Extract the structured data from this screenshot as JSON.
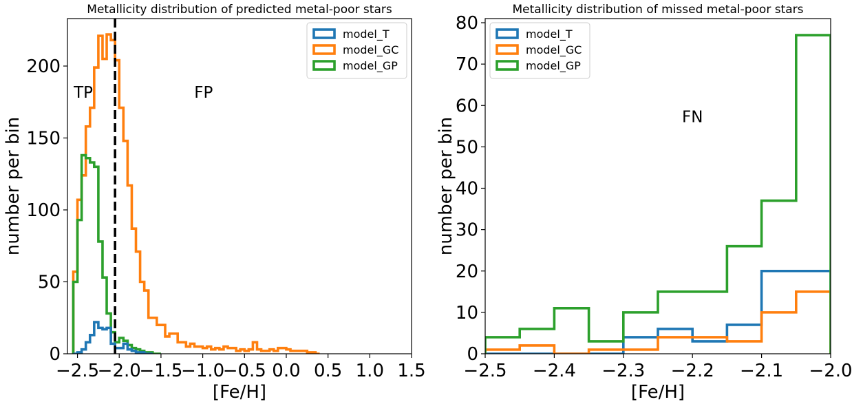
{
  "chart_data": [
    {
      "type": "histogram",
      "title": "Metallicity distribution of predicted metal-poor stars",
      "xlabel": "[Fe/H]",
      "ylabel": "number per bin",
      "xlim": [
        -2.62,
        1.5
      ],
      "ylim": [
        0,
        233
      ],
      "xticks": [
        -2.5,
        -2.0,
        -1.5,
        -1.0,
        -0.5,
        0.0,
        0.5,
        1.0,
        1.5
      ],
      "xtick_labels": [
        "−2.5",
        "−2.0",
        "−1.5",
        "−1.0",
        "−0.5",
        "0.0",
        "0.5",
        "1.0",
        "1.5"
      ],
      "yticks": [
        0,
        50,
        100,
        150,
        200
      ],
      "ytick_labels": [
        "0",
        "50",
        "100",
        "150",
        "200"
      ],
      "legend_position": "top-right",
      "vline": {
        "x": -2.05,
        "style": "dashed",
        "color": "#000000"
      },
      "annotations": [
        {
          "text": "TP",
          "x": -2.43,
          "y": 178
        },
        {
          "text": "FP",
          "x": -0.99,
          "y": 178
        }
      ],
      "series": [
        {
          "name": "model_GC",
          "color": "#ff7f0e",
          "bin_edges": [
            -2.55,
            -2.5,
            -2.45,
            -2.4,
            -2.35,
            -2.3,
            -2.25,
            -2.2,
            -2.15,
            -2.1,
            -2.05,
            -2.0,
            -1.95,
            -1.9,
            -1.85,
            -1.8,
            -1.75,
            -1.7,
            -1.65,
            -1.6,
            -1.55,
            -1.5,
            -1.45,
            -1.4,
            -1.35,
            -1.3,
            -1.25,
            -1.2,
            -1.15,
            -1.1,
            -1.05,
            -1.0,
            -0.95,
            -0.9,
            -0.85,
            -0.8,
            -0.75,
            -0.7,
            -0.65,
            -0.6,
            -0.55,
            -0.5,
            -0.45,
            -0.4,
            -0.35,
            -0.3,
            -0.25,
            -0.2,
            -0.15,
            -0.1,
            -0.05,
            0.0,
            0.05,
            0.1,
            0.15,
            0.2,
            0.25,
            0.3,
            0.35,
            0.4
          ],
          "values": [
            57,
            107,
            124,
            158,
            171,
            199,
            221,
            205,
            222,
            218,
            204,
            171,
            148,
            117,
            87,
            71,
            50,
            44,
            25,
            25,
            20,
            20,
            12,
            14,
            14,
            8,
            8,
            5,
            7,
            5,
            5,
            4,
            5,
            3,
            4,
            3,
            5,
            4,
            4,
            2,
            3,
            2,
            3,
            8,
            3,
            2,
            2,
            3,
            2,
            4,
            4,
            3,
            2,
            2,
            2,
            2,
            1,
            1,
            0
          ]
        },
        {
          "name": "model_GP",
          "color": "#2ca02c",
          "bin_edges": [
            -2.55,
            -2.5,
            -2.45,
            -2.4,
            -2.35,
            -2.3,
            -2.25,
            -2.2,
            -2.15,
            -2.1,
            -2.05,
            -2.0,
            -1.95,
            -1.9,
            -1.85,
            -1.8,
            -1.75,
            -1.7,
            -1.65,
            -1.6,
            -1.55,
            -1.5
          ],
          "values": [
            50,
            93,
            138,
            136,
            133,
            130,
            78,
            53,
            28,
            15,
            8,
            11,
            9,
            6,
            4,
            3,
            2,
            1,
            1,
            0,
            0
          ]
        },
        {
          "name": "model_T",
          "color": "#1f77b4",
          "bin_edges": [
            -2.55,
            -2.5,
            -2.45,
            -2.4,
            -2.35,
            -2.3,
            -2.25,
            -2.2,
            -2.15,
            -2.1,
            -2.05,
            -2.0,
            -1.95,
            -1.9,
            -1.85,
            -1.8,
            -1.75,
            -1.7,
            -1.65,
            -1.6
          ],
          "values": [
            0,
            1,
            3,
            8,
            13,
            22,
            18,
            17,
            18,
            7,
            4,
            4,
            7,
            3,
            2,
            1,
            1,
            0,
            0
          ]
        }
      ],
      "legend_order": [
        "model_T",
        "model_GC",
        "model_GP"
      ]
    },
    {
      "type": "histogram",
      "title": "Metallicity distribution of missed metal-poor stars",
      "xlabel": "[Fe/H]",
      "ylabel": "number per bin",
      "xlim": [
        -2.5,
        -2.0
      ],
      "ylim": [
        0,
        81
      ],
      "xticks": [
        -2.5,
        -2.4,
        -2.3,
        -2.2,
        -2.1,
        -2.0
      ],
      "xtick_labels": [
        "−2.5",
        "−2.4",
        "−2.3",
        "−2.2",
        "−2.1",
        "−2.0"
      ],
      "yticks": [
        0,
        10,
        20,
        30,
        40,
        50,
        60,
        70,
        80
      ],
      "ytick_labels": [
        "0",
        "10",
        "20",
        "30",
        "40",
        "50",
        "60",
        "70",
        "80"
      ],
      "legend_position": "top-left",
      "annotations": [
        {
          "text": "FN",
          "x": -2.2,
          "y": 56
        }
      ],
      "series": [
        {
          "name": "model_T",
          "color": "#1f77b4",
          "bin_edges": [
            -2.5,
            -2.45,
            -2.4,
            -2.35,
            -2.3,
            -2.25,
            -2.2,
            -2.15,
            -2.1,
            -2.05,
            -2.0
          ],
          "values": [
            0,
            0,
            0,
            0,
            4,
            6,
            3,
            7,
            20,
            20
          ]
        },
        {
          "name": "model_GC",
          "color": "#ff7f0e",
          "bin_edges": [
            -2.5,
            -2.45,
            -2.4,
            -2.35,
            -2.3,
            -2.25,
            -2.2,
            -2.15,
            -2.1,
            -2.05,
            -2.0
          ],
          "values": [
            1,
            2,
            0,
            1,
            1,
            4,
            4,
            3,
            10,
            15
          ]
        },
        {
          "name": "model_GP",
          "color": "#2ca02c",
          "bin_edges": [
            -2.5,
            -2.45,
            -2.4,
            -2.35,
            -2.3,
            -2.25,
            -2.2,
            -2.15,
            -2.1,
            -2.05,
            -2.0
          ],
          "values": [
            4,
            6,
            11,
            3,
            10,
            15,
            15,
            26,
            37,
            77
          ]
        }
      ],
      "legend_order": [
        "model_T",
        "model_GC",
        "model_GP"
      ]
    }
  ]
}
